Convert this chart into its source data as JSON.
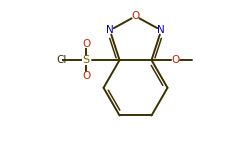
{
  "bg_color": "#ffffff",
  "line_color": "#3d3000",
  "atom_colors": {
    "O": "#cc2200",
    "N": "#0000bb",
    "S": "#7a6000",
    "Cl": "#3d3000"
  },
  "figsize": [
    2.37,
    1.52
  ],
  "dpi": 100,
  "lw": 1.4,
  "lw_inner": 1.1,
  "fs": 7.5,
  "xlim": [
    0,
    8.5
  ],
  "ylim": [
    0,
    5.8
  ]
}
